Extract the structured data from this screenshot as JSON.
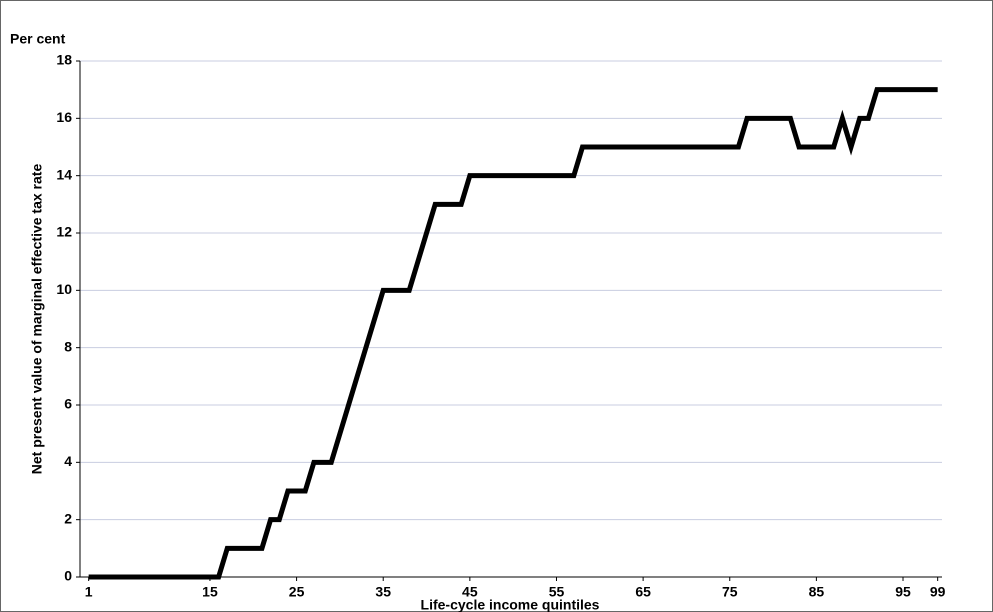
{
  "chart_data": {
    "type": "line",
    "y_label": "Per cent",
    "y_title": "Net present value of marginal effective tax rate",
    "x_title": "Life-cycle income quintiles",
    "x": [
      1,
      2,
      3,
      4,
      5,
      6,
      7,
      8,
      9,
      10,
      11,
      12,
      13,
      14,
      15,
      16,
      17,
      18,
      19,
      20,
      21,
      22,
      23,
      24,
      25,
      26,
      27,
      28,
      29,
      30,
      31,
      32,
      33,
      34,
      35,
      36,
      37,
      38,
      39,
      40,
      41,
      42,
      43,
      44,
      45,
      46,
      47,
      48,
      49,
      50,
      51,
      52,
      53,
      54,
      55,
      56,
      57,
      58,
      59,
      60,
      61,
      62,
      63,
      64,
      65,
      66,
      67,
      68,
      69,
      70,
      71,
      72,
      73,
      74,
      75,
      76,
      77,
      78,
      79,
      80,
      81,
      82,
      83,
      84,
      85,
      86,
      87,
      88,
      89,
      90,
      91,
      92,
      93,
      94,
      95,
      96,
      97,
      98,
      99
    ],
    "values": [
      0,
      0,
      0,
      0,
      0,
      0,
      0,
      0,
      0,
      0,
      0,
      0,
      0,
      0,
      0,
      0,
      1,
      1,
      1,
      1,
      1,
      2,
      2,
      3,
      3,
      3,
      4,
      4,
      4,
      5,
      6,
      7,
      8,
      9,
      10,
      10,
      10,
      10,
      11,
      12,
      13,
      13,
      13,
      13,
      14,
      14,
      14,
      14,
      14,
      14,
      14,
      14,
      14,
      14,
      14,
      14,
      14,
      15,
      15,
      15,
      15,
      15,
      15,
      15,
      15,
      15,
      15,
      15,
      15,
      15,
      15,
      15,
      15,
      15,
      15,
      15,
      16,
      16,
      16,
      16,
      16,
      16,
      15,
      15,
      15,
      15,
      15,
      16,
      15,
      16,
      16,
      17,
      17,
      17,
      17,
      17,
      17,
      17,
      17
    ],
    "color": "#000000",
    "xlim": [
      0,
      99.5
    ],
    "xticks": [
      1,
      15,
      25,
      35,
      45,
      55,
      65,
      75,
      85,
      95,
      99
    ],
    "ylim": [
      0,
      18
    ],
    "yticks": [
      0,
      2,
      4,
      6,
      8,
      10,
      12,
      14,
      16,
      18
    ],
    "grid": true
  }
}
